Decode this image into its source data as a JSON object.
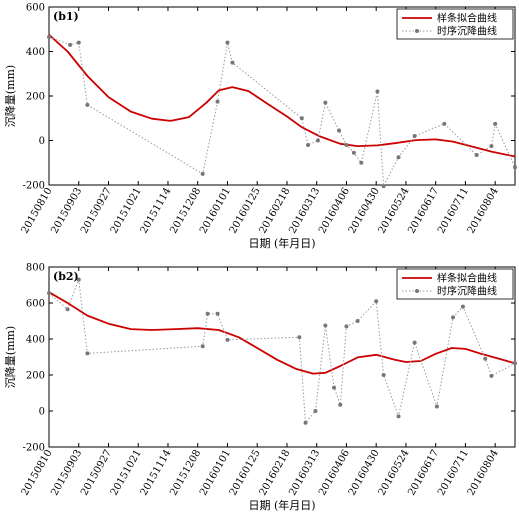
{
  "chart_data": [
    {
      "type": "line",
      "panel_label": "(b1)",
      "xlabel": "日期 (年月日)",
      "ylabel": "沉降量(mm)",
      "ylim": [
        -200,
        600
      ],
      "yticks": [
        -200,
        0,
        200,
        400,
        600
      ],
      "xlim": [
        "2015-08-10",
        "2016-08-20"
      ],
      "xticks": [
        {
          "date": "2015-08-10",
          "label": "20150810"
        },
        {
          "date": "2015-09-03",
          "label": "20150903"
        },
        {
          "date": "2015-09-27",
          "label": "20150927"
        },
        {
          "date": "2015-10-21",
          "label": "20151021"
        },
        {
          "date": "2015-11-14",
          "label": "20151114"
        },
        {
          "date": "2015-12-08",
          "label": "20151208"
        },
        {
          "date": "2016-01-01",
          "label": "20160101"
        },
        {
          "date": "2016-01-25",
          "label": "20160125"
        },
        {
          "date": "2016-02-18",
          "label": "20160218"
        },
        {
          "date": "2016-03-13",
          "label": "20160313"
        },
        {
          "date": "2016-04-06",
          "label": "20160406"
        },
        {
          "date": "2016-04-30",
          "label": "20160430"
        },
        {
          "date": "2016-05-24",
          "label": "20160524"
        },
        {
          "date": "2016-06-17",
          "label": "20160617"
        },
        {
          "date": "2016-07-11",
          "label": "20160711"
        },
        {
          "date": "2016-08-04",
          "label": "20160804"
        }
      ],
      "legend_position": "top-right",
      "series": [
        {
          "name": "样条拟合曲线",
          "style": "solid",
          "color": "#cc0000",
          "points": [
            [
              "2015-08-10",
              475
            ],
            [
              "2015-08-25",
              400
            ],
            [
              "2015-09-10",
              290
            ],
            [
              "2015-09-27",
              195
            ],
            [
              "2015-10-15",
              130
            ],
            [
              "2015-11-01",
              98
            ],
            [
              "2015-11-16",
              88
            ],
            [
              "2015-12-01",
              105
            ],
            [
              "2015-12-15",
              170
            ],
            [
              "2015-12-25",
              225
            ],
            [
              "2016-01-05",
              240
            ],
            [
              "2016-01-18",
              222
            ],
            [
              "2016-02-01",
              170
            ],
            [
              "2016-02-18",
              108
            ],
            [
              "2016-03-01",
              60
            ],
            [
              "2016-03-15",
              20
            ],
            [
              "2016-04-01",
              -15
            ],
            [
              "2016-04-15",
              -25
            ],
            [
              "2016-05-01",
              -22
            ],
            [
              "2016-05-15",
              -12
            ],
            [
              "2016-06-01",
              2
            ],
            [
              "2016-06-17",
              5
            ],
            [
              "2016-07-01",
              -5
            ],
            [
              "2016-07-15",
              -25
            ],
            [
              "2016-08-01",
              -50
            ],
            [
              "2016-08-20",
              -72
            ]
          ]
        },
        {
          "name": "时序沉降曲线",
          "style": "dotted",
          "color": "#999999",
          "marker": "dot",
          "points": [
            [
              "2015-08-10",
              465
            ],
            [
              "2015-08-27",
              430
            ],
            [
              "2015-09-03",
              440
            ],
            [
              "2015-09-10",
              160
            ],
            [
              "2015-12-12",
              -150
            ],
            [
              "2015-12-24",
              175
            ],
            [
              "2016-01-01",
              440
            ],
            [
              "2016-01-05",
              350
            ],
            [
              "2016-03-01",
              100
            ],
            [
              "2016-03-06",
              -20
            ],
            [
              "2016-03-14",
              0
            ],
            [
              "2016-03-20",
              170
            ],
            [
              "2016-03-31",
              45
            ],
            [
              "2016-04-06",
              -20
            ],
            [
              "2016-04-12",
              -55
            ],
            [
              "2016-04-18",
              -100
            ],
            [
              "2016-05-01",
              220
            ],
            [
              "2016-05-06",
              -205
            ],
            [
              "2016-05-18",
              -75
            ],
            [
              "2016-05-31",
              20
            ],
            [
              "2016-06-24",
              75
            ],
            [
              "2016-07-20",
              -65
            ],
            [
              "2016-08-01",
              -25
            ],
            [
              "2016-08-04",
              75
            ],
            [
              "2016-08-20",
              -120
            ]
          ]
        }
      ]
    },
    {
      "type": "line",
      "panel_label": "(b2)",
      "xlabel": "日期 (年月日)",
      "ylabel": "沉降量(mm)",
      "ylim": [
        -200,
        800
      ],
      "yticks": [
        -200,
        0,
        200,
        400,
        600,
        800
      ],
      "xlim": [
        "2015-08-10",
        "2016-08-20"
      ],
      "xticks": [
        {
          "date": "2015-08-10",
          "label": "20150810"
        },
        {
          "date": "2015-09-03",
          "label": "20150903"
        },
        {
          "date": "2015-09-27",
          "label": "20150927"
        },
        {
          "date": "2015-10-21",
          "label": "20151021"
        },
        {
          "date": "2015-11-14",
          "label": "20151114"
        },
        {
          "date": "2015-12-08",
          "label": "20151208"
        },
        {
          "date": "2016-01-01",
          "label": "20160101"
        },
        {
          "date": "2016-01-25",
          "label": "20160125"
        },
        {
          "date": "2016-02-18",
          "label": "20160218"
        },
        {
          "date": "2016-03-13",
          "label": "20160313"
        },
        {
          "date": "2016-04-06",
          "label": "20160406"
        },
        {
          "date": "2016-04-30",
          "label": "20160430"
        },
        {
          "date": "2016-05-24",
          "label": "20160524"
        },
        {
          "date": "2016-06-17",
          "label": "20160617"
        },
        {
          "date": "2016-07-11",
          "label": "20160711"
        },
        {
          "date": "2016-08-04",
          "label": "20160804"
        }
      ],
      "legend_position": "top-right",
      "series": [
        {
          "name": "样条拟合曲线",
          "style": "solid",
          "color": "#cc0000",
          "points": [
            [
              "2015-08-10",
              660
            ],
            [
              "2015-08-25",
              600
            ],
            [
              "2015-09-10",
              530
            ],
            [
              "2015-09-27",
              485
            ],
            [
              "2015-10-15",
              455
            ],
            [
              "2015-11-01",
              450
            ],
            [
              "2015-11-20",
              455
            ],
            [
              "2015-12-08",
              460
            ],
            [
              "2015-12-25",
              450
            ],
            [
              "2016-01-10",
              410
            ],
            [
              "2016-01-25",
              350
            ],
            [
              "2016-02-10",
              285
            ],
            [
              "2016-02-25",
              235
            ],
            [
              "2016-03-10",
              208
            ],
            [
              "2016-03-20",
              212
            ],
            [
              "2016-04-01",
              250
            ],
            [
              "2016-04-15",
              298
            ],
            [
              "2016-04-30",
              312
            ],
            [
              "2016-05-15",
              285
            ],
            [
              "2016-05-24",
              272
            ],
            [
              "2016-06-05",
              278
            ],
            [
              "2016-06-17",
              318
            ],
            [
              "2016-06-30",
              350
            ],
            [
              "2016-07-11",
              345
            ],
            [
              "2016-07-25",
              315
            ],
            [
              "2016-08-10",
              285
            ],
            [
              "2016-08-20",
              265
            ]
          ]
        },
        {
          "name": "时序沉降曲线",
          "style": "dotted",
          "color": "#999999",
          "marker": "dot",
          "points": [
            [
              "2015-08-10",
              655
            ],
            [
              "2015-08-25",
              565
            ],
            [
              "2015-09-03",
              730
            ],
            [
              "2015-09-10",
              320
            ],
            [
              "2015-12-12",
              360
            ],
            [
              "2015-12-16",
              540
            ],
            [
              "2015-12-24",
              540
            ],
            [
              "2016-01-01",
              395
            ],
            [
              "2016-02-28",
              410
            ],
            [
              "2016-03-04",
              -65
            ],
            [
              "2016-03-12",
              0
            ],
            [
              "2016-03-20",
              475
            ],
            [
              "2016-03-27",
              130
            ],
            [
              "2016-04-01",
              35
            ],
            [
              "2016-04-06",
              470
            ],
            [
              "2016-04-15",
              500
            ],
            [
              "2016-04-30",
              610
            ],
            [
              "2016-05-06",
              200
            ],
            [
              "2016-05-18",
              -30
            ],
            [
              "2016-05-31",
              380
            ],
            [
              "2016-06-18",
              25
            ],
            [
              "2016-07-01",
              520
            ],
            [
              "2016-07-09",
              580
            ],
            [
              "2016-07-27",
              290
            ],
            [
              "2016-08-01",
              195
            ],
            [
              "2016-08-20",
              265
            ]
          ]
        }
      ]
    }
  ]
}
